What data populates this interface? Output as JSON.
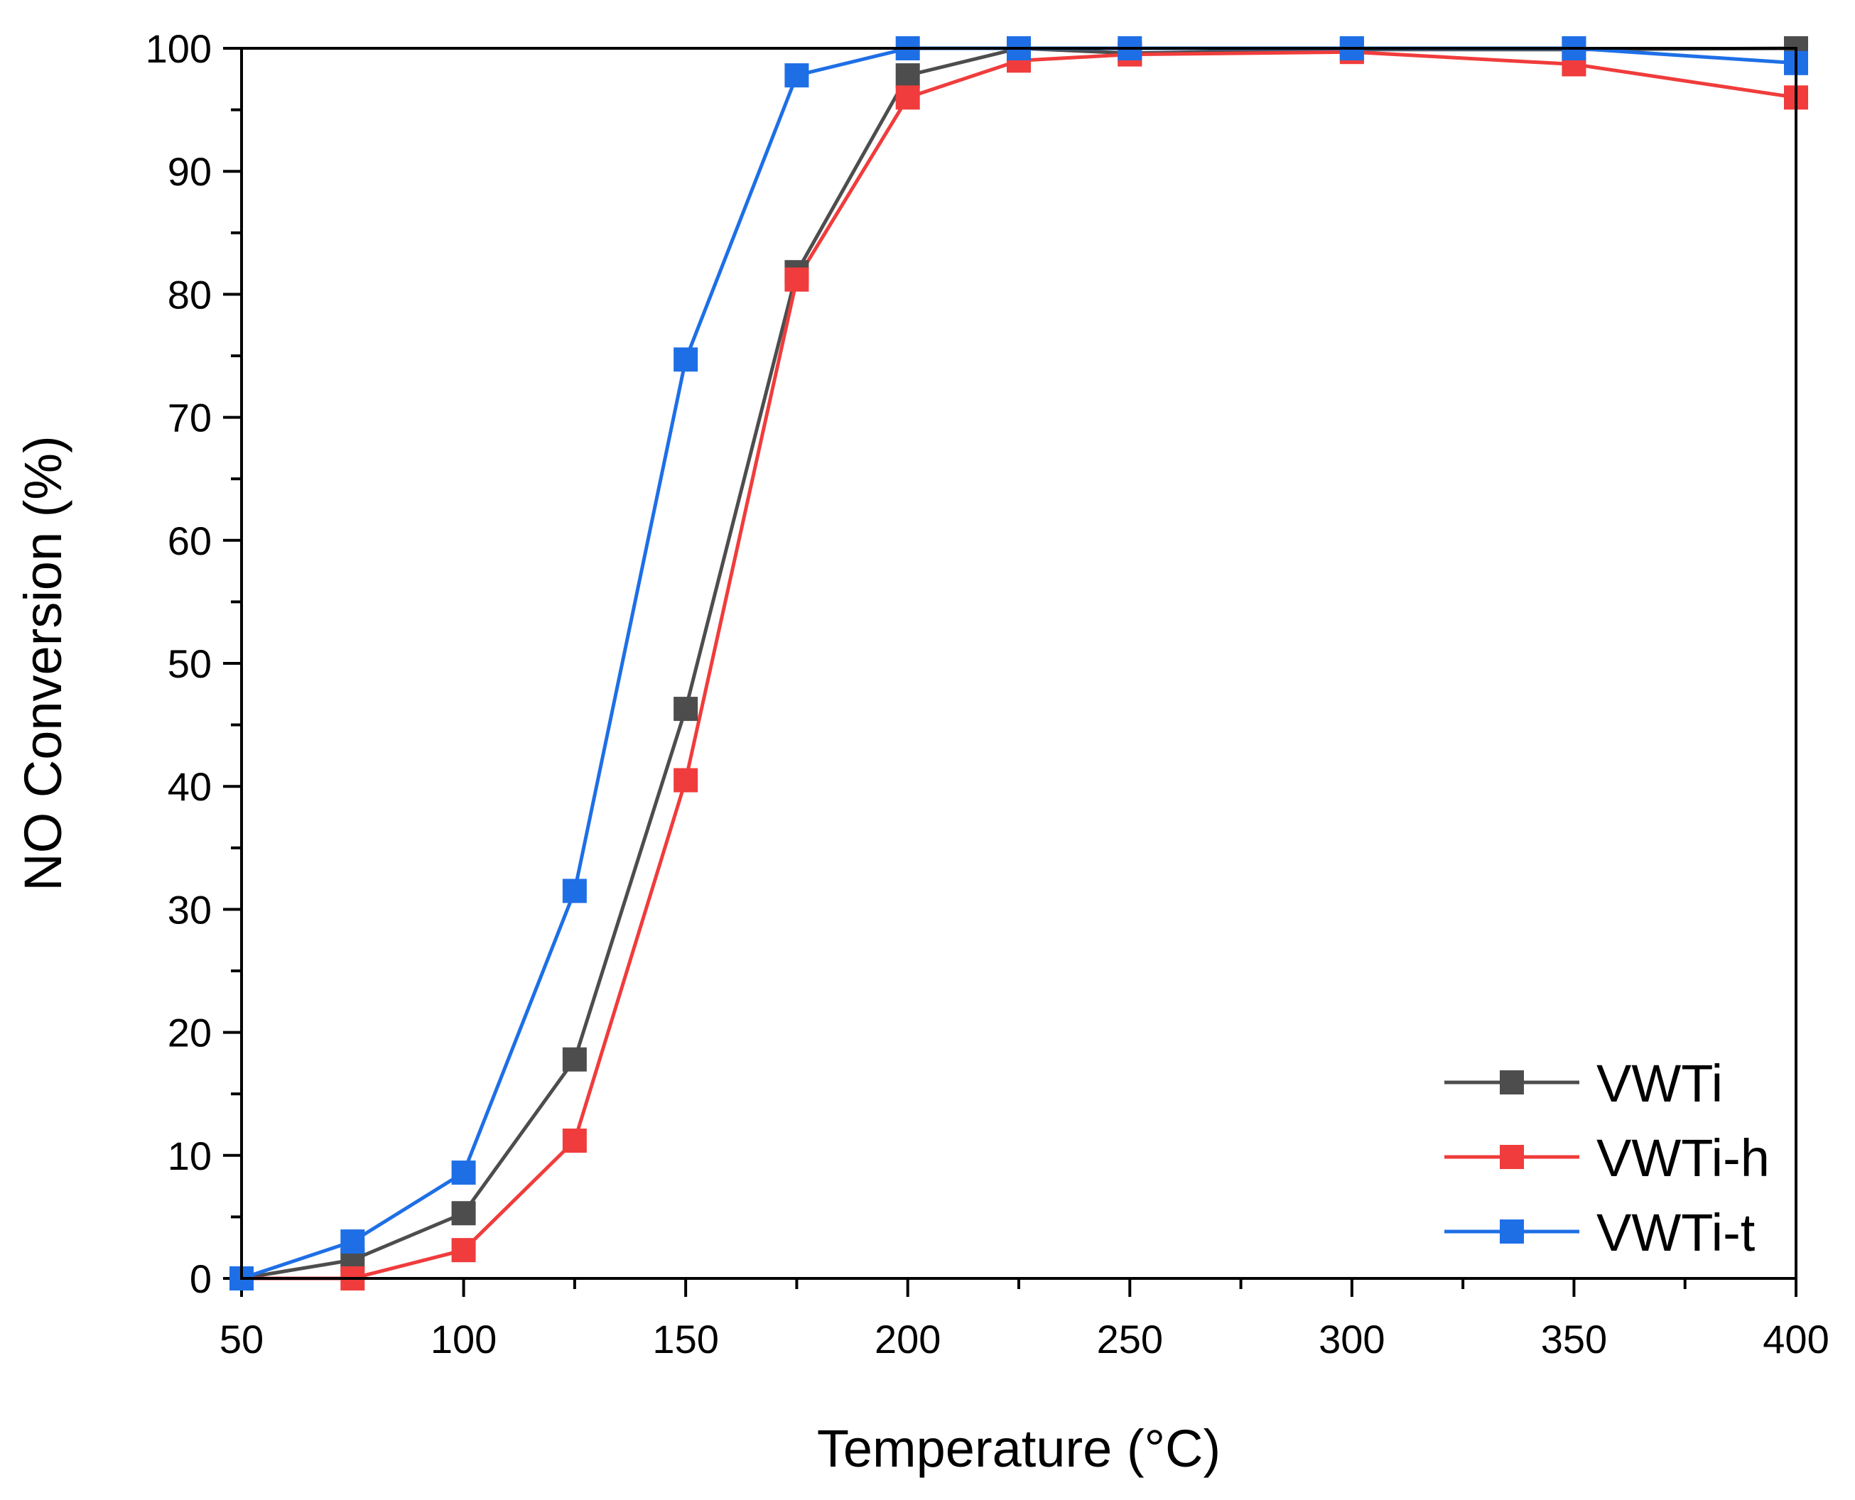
{
  "chart_data": {
    "type": "line",
    "title": "",
    "xlabel": "Temperature (°C)",
    "ylabel": "NO Conversion (%)",
    "xlim": [
      50,
      400
    ],
    "ylim": [
      0,
      100
    ],
    "xticks": [
      50,
      100,
      150,
      200,
      250,
      300,
      350,
      400
    ],
    "yticks": [
      0,
      10,
      20,
      30,
      40,
      50,
      60,
      70,
      80,
      90,
      100
    ],
    "x_tick_labels": [
      "50",
      "100",
      "150",
      "200",
      "250",
      "300",
      "350",
      "400"
    ],
    "y_tick_labels": [
      "0",
      "10",
      "20",
      "30",
      "40",
      "50",
      "60",
      "70",
      "80",
      "90",
      "100"
    ],
    "grid": false,
    "legend_position": "bottom-right",
    "marker": "square",
    "x": [
      50,
      75,
      100,
      125,
      150,
      175,
      200,
      225,
      250,
      300,
      350,
      400
    ],
    "series": [
      {
        "name": "VWTi",
        "color": "#4d4d4d",
        "values": [
          0,
          1.5,
          5.3,
          17.8,
          46.3,
          81.8,
          97.8,
          100,
          99.6,
          99.9,
          99.9,
          100
        ]
      },
      {
        "name": "VWTi-h",
        "color": "#f03c3c",
        "values": [
          0,
          0,
          2.3,
          11.2,
          40.5,
          81.2,
          96.0,
          99.0,
          99.5,
          99.7,
          98.7,
          96.0
        ]
      },
      {
        "name": "VWTi-t",
        "color": "#1e6fe6",
        "values": [
          0,
          3.0,
          8.6,
          31.5,
          74.7,
          97.8,
          100,
          100,
          100,
          100,
          100,
          98.8
        ]
      }
    ]
  }
}
